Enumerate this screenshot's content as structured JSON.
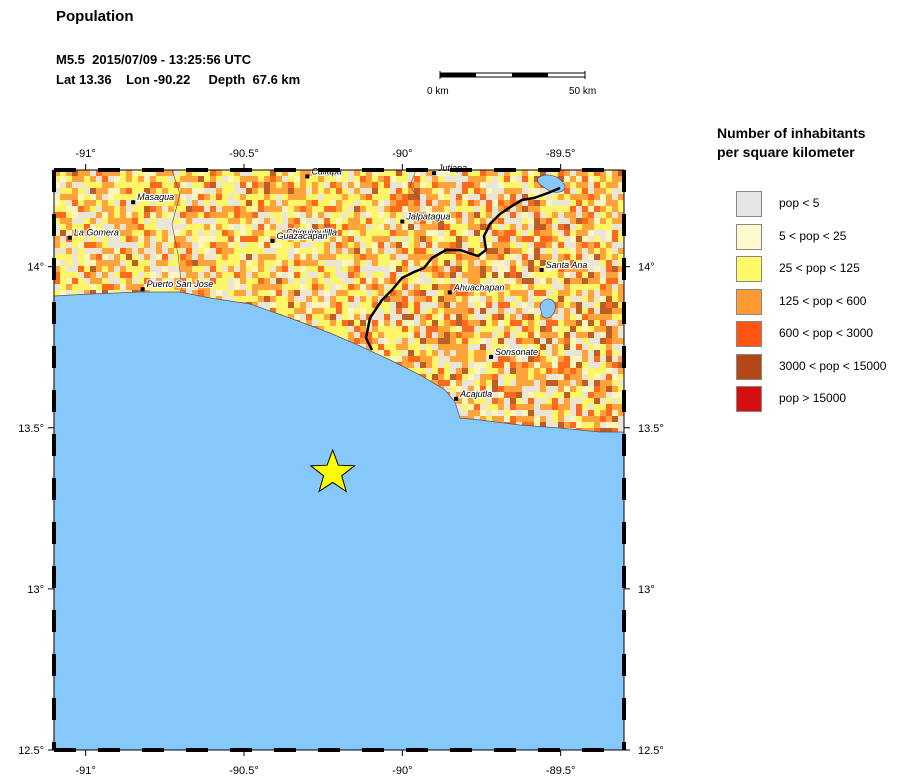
{
  "header": {
    "title": "Population",
    "event_line": "M5.5  2015/07/09 - 13:25:56 UTC",
    "location_line": "Lat 13.36    Lon -90.22     Depth  67.6 km"
  },
  "scale_bar": {
    "left_label": "0 km",
    "right_label": "50 km"
  },
  "map": {
    "lon_ticks": [
      -91,
      -90.5,
      -90,
      -89.5
    ],
    "lon_labels": [
      "-91°",
      "-90.5°",
      "-90°",
      "-89.5°"
    ],
    "lat_ticks": [
      14,
      13.5,
      13,
      12.5
    ],
    "lat_labels": [
      "14°",
      "13.5°",
      "13°",
      "12.5°"
    ],
    "lon_range": [
      -91.1,
      -89.3
    ],
    "lat_range": [
      12.5,
      14.3
    ],
    "epicenter": {
      "lat": 13.36,
      "lon": -90.22
    },
    "colors": {
      "ocean": "#87c8fa",
      "star": "#ffff00"
    },
    "cities": [
      {
        "name": "Masagua",
        "lat": 14.2,
        "lon": -90.85
      },
      {
        "name": "La Gomera",
        "lat": 14.09,
        "lon": -91.05
      },
      {
        "name": "Puerto San Jose",
        "lat": 13.93,
        "lon": -90.82
      },
      {
        "name": "Chiquimulilla",
        "lat": 14.09,
        "lon": -90.38
      },
      {
        "name": "Guazacapan",
        "lat": 14.08,
        "lon": -90.41
      },
      {
        "name": "Cuilapa",
        "lat": 14.28,
        "lon": -90.3
      },
      {
        "name": "Jutiapa",
        "lat": 14.29,
        "lon": -89.9
      },
      {
        "name": "Jalpatagua",
        "lat": 14.14,
        "lon": -90.0
      },
      {
        "name": "Santa Ana",
        "lat": 13.99,
        "lon": -89.56
      },
      {
        "name": "Ahuachapan",
        "lat": 13.92,
        "lon": -89.85
      },
      {
        "name": "Sonsonate",
        "lat": 13.72,
        "lon": -89.72
      },
      {
        "name": "Acajutla",
        "lat": 13.59,
        "lon": -89.83
      }
    ]
  },
  "legend": {
    "title_line1": "Number of inhabitants",
    "title_line2": "per square kilometer",
    "items": [
      {
        "label": "pop < 5",
        "color": "#e6e6e6"
      },
      {
        "label": "5 < pop < 25",
        "color": "#fffacd"
      },
      {
        "label": "25 < pop < 125",
        "color": "#fffa66"
      },
      {
        "label": "125 < pop < 600",
        "color": "#ff9933"
      },
      {
        "label": "600 < pop < 3000",
        "color": "#ff5511"
      },
      {
        "label": "3000 < pop < 15000",
        "color": "#b4471a"
      },
      {
        "label": "pop > 15000",
        "color": "#d50f0f"
      }
    ]
  }
}
